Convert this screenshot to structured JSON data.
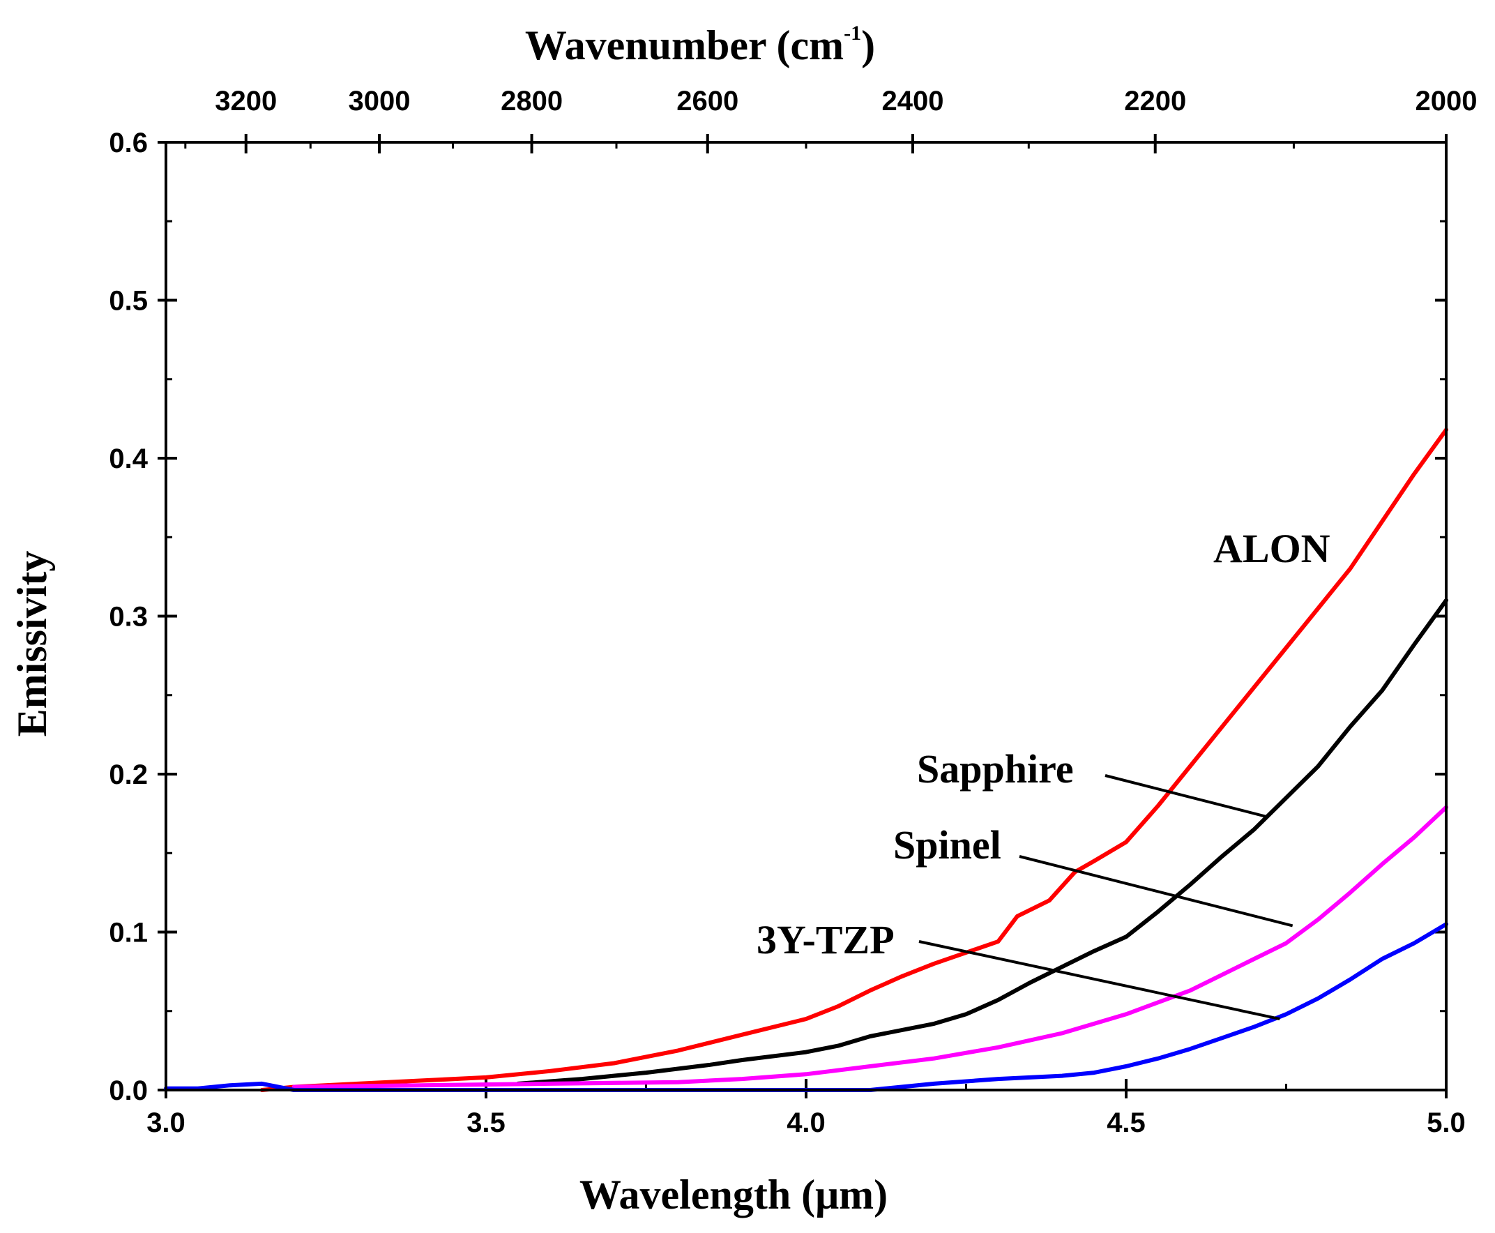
{
  "chart_data": {
    "type": "line",
    "title": "",
    "xlabel": "Wavelength (μm)",
    "ylabel": "Emissivity",
    "x2label_base": "Wavenumber (cm",
    "x2label_sup": "-1",
    "x2label_close": ")",
    "xlim": [
      3.0,
      5.0
    ],
    "ylim": [
      0.0,
      0.6
    ],
    "xticks": [
      3.0,
      3.5,
      4.0,
      4.5,
      5.0
    ],
    "xtick_labels": [
      "3.0",
      "3.5",
      "4.0",
      "4.5",
      "5.0"
    ],
    "yticks": [
      0.0,
      0.1,
      0.2,
      0.3,
      0.4,
      0.5,
      0.6
    ],
    "ytick_labels": [
      "0.0",
      "0.1",
      "0.2",
      "0.3",
      "0.4",
      "0.5",
      "0.6"
    ],
    "top_axis": {
      "ticks": [
        3200,
        3000,
        2800,
        2600,
        2400,
        2200,
        2000
      ],
      "tick_labels": [
        "3200",
        "3000",
        "2800",
        "2600",
        "2400",
        "2200",
        "2000"
      ]
    },
    "grid": false,
    "series": [
      {
        "name": "ALON",
        "color": "#ff0000",
        "x": [
          3.15,
          3.2,
          3.3,
          3.4,
          3.5,
          3.6,
          3.7,
          3.8,
          3.9,
          4.0,
          4.05,
          4.1,
          4.15,
          4.2,
          4.25,
          4.3,
          4.33,
          4.38,
          4.42,
          4.45,
          4.5,
          4.55,
          4.6,
          4.65,
          4.7,
          4.75,
          4.8,
          4.85,
          4.9,
          4.95,
          5.0
        ],
        "y": [
          0.0,
          0.002,
          0.004,
          0.006,
          0.008,
          0.012,
          0.017,
          0.025,
          0.035,
          0.045,
          0.053,
          0.063,
          0.072,
          0.08,
          0.087,
          0.094,
          0.11,
          0.12,
          0.138,
          0.145,
          0.157,
          0.18,
          0.205,
          0.23,
          0.255,
          0.28,
          0.305,
          0.33,
          0.36,
          0.39,
          0.418
        ]
      },
      {
        "name": "Sapphire",
        "color": "#000000",
        "x": [
          3.55,
          3.65,
          3.75,
          3.85,
          3.9,
          4.0,
          4.05,
          4.1,
          4.2,
          4.25,
          4.3,
          4.35,
          4.4,
          4.45,
          4.5,
          4.55,
          4.6,
          4.65,
          4.7,
          4.75,
          4.8,
          4.85,
          4.9,
          4.95,
          5.0
        ],
        "y": [
          0.004,
          0.007,
          0.011,
          0.016,
          0.019,
          0.024,
          0.028,
          0.034,
          0.042,
          0.048,
          0.057,
          0.068,
          0.078,
          0.088,
          0.097,
          0.113,
          0.13,
          0.148,
          0.165,
          0.185,
          0.205,
          0.23,
          0.253,
          0.282,
          0.31
        ]
      },
      {
        "name": "Spinel",
        "color": "#ff00ff",
        "x": [
          3.2,
          3.4,
          3.6,
          3.8,
          3.9,
          4.0,
          4.1,
          4.2,
          4.3,
          4.4,
          4.5,
          4.6,
          4.65,
          4.7,
          4.75,
          4.8,
          4.85,
          4.9,
          4.95,
          5.0
        ],
        "y": [
          0.002,
          0.003,
          0.004,
          0.005,
          0.007,
          0.01,
          0.015,
          0.02,
          0.027,
          0.036,
          0.048,
          0.063,
          0.073,
          0.083,
          0.093,
          0.108,
          0.125,
          0.143,
          0.16,
          0.179
        ]
      },
      {
        "name": "3Y-TZP",
        "color": "#0000ff",
        "x": [
          3.0,
          3.05,
          3.1,
          3.15,
          3.2,
          3.3,
          3.5,
          3.7,
          3.9,
          4.1,
          4.2,
          4.3,
          4.4,
          4.45,
          4.5,
          4.55,
          4.6,
          4.65,
          4.7,
          4.75,
          4.8,
          4.85,
          4.9,
          4.95,
          5.0
        ],
        "y": [
          0.001,
          0.001,
          0.003,
          0.004,
          0.0,
          0.0,
          0.0,
          0.0,
          0.0,
          0.0,
          0.004,
          0.007,
          0.009,
          0.011,
          0.015,
          0.02,
          0.026,
          0.033,
          0.04,
          0.048,
          0.058,
          0.07,
          0.083,
          0.093,
          0.105
        ]
      }
    ],
    "annotations": [
      {
        "text": "ALON",
        "series": "ALON"
      },
      {
        "text": "Sapphire",
        "series": "Sapphire",
        "points_to": [
          4.72,
          0.173
        ]
      },
      {
        "text": "Spinel",
        "series": "Spinel",
        "points_to": [
          4.76,
          0.104
        ]
      },
      {
        "text": "3Y-TZP",
        "series": "3Y-TZP",
        "points_to": [
          4.74,
          0.045
        ]
      }
    ]
  }
}
